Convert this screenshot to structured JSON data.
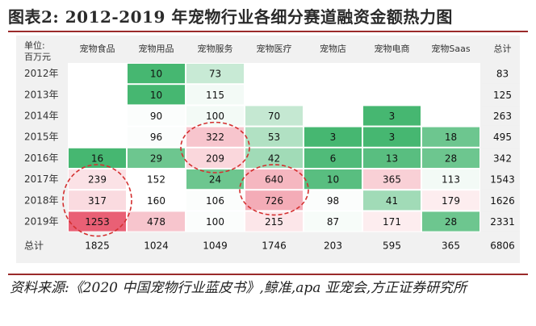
{
  "title": "图表2:   2012-2019 年宠物行业各细分赛道融资金额热力图",
  "source": "资料来源:《2020 中国宠物行业蓝皮书》,鲸准,apa 亚宠会,方正证券研究所",
  "colors": {
    "positive": "#3cb36a",
    "negative": "#e64a62",
    "highlight_circle": "#d43030",
    "rule": "#9a2a2a"
  },
  "chart_data": {
    "type": "heatmap",
    "corner_label": "单位:百万元",
    "columns": [
      "宠物食品",
      "宠物用品",
      "宠物服务",
      "宠物医疗",
      "宠物店",
      "宠物电商",
      "宠物Saas",
      "总计"
    ],
    "rows": [
      "2012年",
      "2013年",
      "2014年",
      "2015年",
      "2016年",
      "2017年",
      "2018年",
      "2019年"
    ],
    "total_row_label": "总计",
    "values": [
      [
        null,
        10,
        73,
        null,
        null,
        null,
        null,
        83
      ],
      [
        null,
        10,
        115,
        null,
        null,
        null,
        null,
        125
      ],
      [
        null,
        90,
        100,
        70,
        null,
        3,
        null,
        263
      ],
      [
        null,
        96,
        322,
        53,
        3,
        3,
        18,
        495
      ],
      [
        16,
        29,
        209,
        42,
        6,
        13,
        28,
        342
      ],
      [
        239,
        152,
        24,
        640,
        10,
        365,
        113,
        1543
      ],
      [
        317,
        160,
        106,
        726,
        98,
        41,
        179,
        1626
      ],
      [
        1253,
        478,
        100,
        215,
        87,
        171,
        28,
        2331
      ]
    ],
    "totals": [
      1825,
      1024,
      1049,
      1746,
      203,
      595,
      365,
      6806
    ],
    "cell_shading": [
      [
        0,
        0.95,
        0.28,
        0,
        0,
        0,
        0,
        0
      ],
      [
        0,
        0.95,
        0.06,
        0,
        0,
        0,
        0,
        0
      ],
      [
        0,
        0.02,
        0.06,
        0.3,
        0,
        0.95,
        0,
        0
      ],
      [
        0,
        0.02,
        -0.32,
        0.4,
        0.95,
        0.95,
        0.75,
        0
      ],
      [
        0.95,
        0.75,
        -0.22,
        0.48,
        0.9,
        0.85,
        0.75,
        0
      ],
      [
        -0.16,
        0,
        0.75,
        -0.4,
        0.85,
        -0.26,
        0.06,
        0
      ],
      [
        -0.2,
        0,
        0.02,
        -0.46,
        0.02,
        0.48,
        -0.1,
        0
      ],
      [
        -0.88,
        -0.32,
        0.02,
        -0.14,
        0.04,
        -0.1,
        0.75,
        0
      ]
    ],
    "highlight_circles": [
      {
        "row_start": 5,
        "row_end": 7,
        "col": 0
      },
      {
        "row_start": 3,
        "row_end": 4,
        "col": 2
      },
      {
        "row_start": 5,
        "row_end": 6,
        "col": 3
      }
    ]
  }
}
